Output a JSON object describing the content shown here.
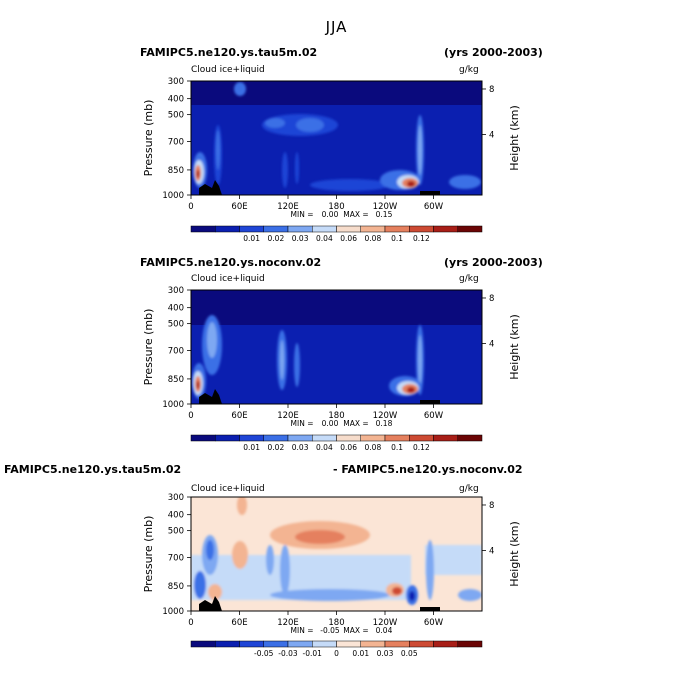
{
  "figure": {
    "title": "JJA"
  },
  "chart_data": [
    {
      "type": "heatmap",
      "case_name": "FAMIPC5.ne120.ys.tau5m.02",
      "years": "(yrs 2000-2003)",
      "variable": "Cloud ice+liquid",
      "units": "g/kg",
      "ylabel": "Pressure (mb)",
      "ylabel_right": "Height (km)",
      "y_ticks": [
        "300",
        "400",
        "500",
        "700",
        "850",
        "1000"
      ],
      "height_ticks": [
        "8",
        "4"
      ],
      "x_ticks": [
        "0",
        "60E",
        "120E",
        "180",
        "120W",
        "60W"
      ],
      "stats": {
        "min_label": "MIN =",
        "min": "0.00",
        "max_label": "MAX =",
        "max": "0.15"
      },
      "colorbar_labels": [
        "0.01",
        "0.02",
        "0.03",
        "0.04",
        "0.06",
        "0.08",
        "0.1",
        "0.12"
      ],
      "colors": [
        "#0a0a7d",
        "#0b1fb0",
        "#1f45d6",
        "#3b6fe6",
        "#7ea8f2",
        "#c5dbf8",
        "#f6dccb",
        "#f3b492",
        "#e5805e",
        "#cd4a33",
        "#a81e17",
        "#6b0505"
      ]
    },
    {
      "type": "heatmap",
      "case_name": "FAMIPC5.ne120.ys.noconv.02",
      "years": "(yrs 2000-2003)",
      "variable": "Cloud ice+liquid",
      "units": "g/kg",
      "ylabel": "Pressure (mb)",
      "ylabel_right": "Height (km)",
      "y_ticks": [
        "300",
        "400",
        "500",
        "700",
        "850",
        "1000"
      ],
      "height_ticks": [
        "8",
        "4"
      ],
      "x_ticks": [
        "0",
        "60E",
        "120E",
        "180",
        "120W",
        "60W"
      ],
      "stats": {
        "min_label": "MIN =",
        "min": "0.00",
        "max_label": "MAX =",
        "max": "0.18"
      },
      "colorbar_labels": [
        "0.01",
        "0.02",
        "0.03",
        "0.04",
        "0.06",
        "0.08",
        "0.1",
        "0.12"
      ],
      "colors": [
        "#0a0a7d",
        "#0b1fb0",
        "#1f45d6",
        "#3b6fe6",
        "#7ea8f2",
        "#c5dbf8",
        "#f6dccb",
        "#f3b492",
        "#e5805e",
        "#cd4a33",
        "#a81e17",
        "#6b0505"
      ]
    },
    {
      "type": "heatmap",
      "case_name": "FAMIPC5.ne120.ys.tau5m.02",
      "years": "- FAMIPC5.ne120.ys.noconv.02",
      "variable": "Cloud ice+liquid",
      "units": "g/kg",
      "ylabel": "Pressure (mb)",
      "ylabel_right": "Height (km)",
      "y_ticks": [
        "300",
        "400",
        "500",
        "700",
        "850",
        "1000"
      ],
      "height_ticks": [
        "8",
        "4"
      ],
      "x_ticks": [
        "0",
        "60E",
        "120E",
        "180",
        "120W",
        "60W"
      ],
      "stats": {
        "min_label": "MIN =",
        "min": "-0.05",
        "max_label": "MAX =",
        "max": "0.04"
      },
      "colorbar_labels": [
        "-0.05",
        "-0.03",
        "-0.01",
        "0",
        "0.01",
        "0.03",
        "0.05"
      ],
      "colors": [
        "#0a0a7d",
        "#0b1fb0",
        "#1f45d6",
        "#3b6fe6",
        "#7ea8f2",
        "#c5dbf8",
        "#fbe5d6",
        "#f3b492",
        "#e5805e",
        "#cd4a33",
        "#a81e17",
        "#6b0505"
      ]
    }
  ]
}
